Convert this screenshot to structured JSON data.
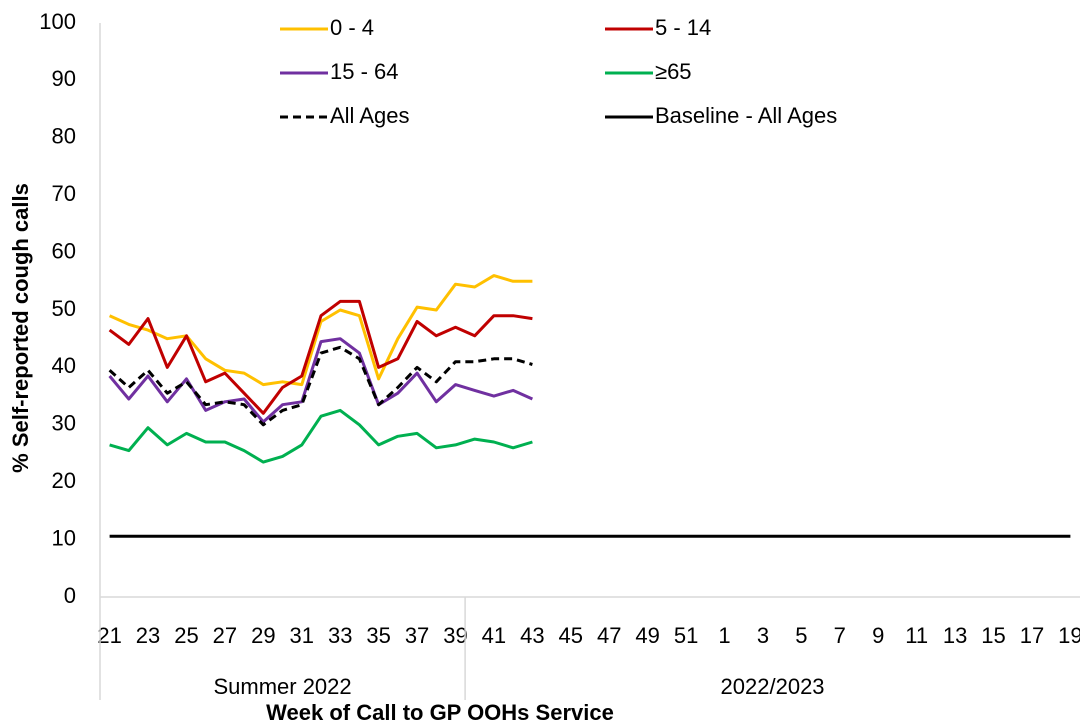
{
  "chart_data": {
    "type": "line",
    "ylabel": "% Self-reported cough calls",
    "xlabel": "Week of Call to GP OOHs Service",
    "categories": [
      "21",
      null,
      "23",
      null,
      "25",
      null,
      "27",
      null,
      "29",
      null,
      "31",
      null,
      "33",
      null,
      "35",
      null,
      "37",
      null,
      "39",
      null,
      "41",
      null,
      "43",
      null,
      "45",
      null,
      "47",
      null,
      "49",
      null,
      "51",
      null,
      "1",
      null,
      "3",
      null,
      "5",
      null,
      "7",
      null,
      "9",
      null,
      "11",
      null,
      "13",
      null,
      "15",
      null,
      "17",
      null,
      "19"
    ],
    "groups": [
      {
        "label": "Summer 2022",
        "span": 19
      },
      {
        "label": "2022/2023",
        "span": 32
      }
    ],
    "ylim": [
      0,
      100
    ],
    "yticks": [
      0,
      10,
      20,
      30,
      40,
      50,
      60,
      70,
      80,
      90,
      100
    ],
    "grid": false,
    "series": [
      {
        "name": "0 - 4",
        "color": "#ffc000",
        "style": "solid",
        "values": [
          49,
          47.5,
          46.5,
          45,
          45.5,
          41.5,
          39.5,
          39,
          37,
          37.5,
          37,
          48,
          50,
          49,
          38,
          45,
          50.5,
          50,
          54.5,
          54,
          56,
          55,
          55,
          null,
          null,
          null,
          null,
          null,
          null,
          null,
          null,
          null,
          null,
          null,
          null,
          null,
          null,
          null,
          null,
          null,
          null,
          null,
          null,
          null,
          null,
          null,
          null,
          null,
          null,
          null,
          null
        ]
      },
      {
        "name": "5 - 14",
        "color": "#c00000",
        "style": "solid",
        "values": [
          46.5,
          44,
          48.5,
          40,
          45.5,
          37.5,
          39,
          35.5,
          32,
          36.5,
          38.5,
          49,
          51.5,
          51.5,
          40,
          41.5,
          48,
          45.5,
          47,
          45.5,
          49,
          49,
          48.5,
          null,
          null,
          null,
          null,
          null,
          null,
          null,
          null,
          null,
          null,
          null,
          null,
          null,
          null,
          null,
          null,
          null,
          null,
          null,
          null,
          null,
          null,
          null,
          null,
          null,
          null,
          null,
          null
        ]
      },
      {
        "name": "15 - 64",
        "color": "#7030a0",
        "style": "solid",
        "values": [
          38.5,
          34.5,
          38.5,
          34,
          38,
          32.5,
          34,
          34.5,
          30.5,
          33.5,
          34,
          44.5,
          45,
          42.5,
          33.5,
          35.5,
          39,
          34,
          37,
          36,
          35,
          36,
          34.5,
          null,
          null,
          null,
          null,
          null,
          null,
          null,
          null,
          null,
          null,
          null,
          null,
          null,
          null,
          null,
          null,
          null,
          null,
          null,
          null,
          null,
          null,
          null,
          null,
          null,
          null,
          null,
          null
        ]
      },
      {
        "name": "≥65",
        "color": "#00b050",
        "style": "solid",
        "values": [
          26.5,
          25.5,
          29.5,
          26.5,
          28.5,
          27,
          27,
          25.5,
          23.5,
          24.5,
          26.5,
          31.5,
          32.5,
          30,
          26.5,
          28,
          28.5,
          26,
          26.5,
          27.5,
          27,
          26,
          27,
          null,
          null,
          null,
          null,
          null,
          null,
          null,
          null,
          null,
          null,
          null,
          null,
          null,
          null,
          null,
          null,
          null,
          null,
          null,
          null,
          null,
          null,
          null,
          null,
          null,
          null,
          null,
          null
        ]
      },
      {
        "name": "All Ages",
        "color": "#000000",
        "style": "dashed",
        "values": [
          39.5,
          36.5,
          39.5,
          35.5,
          37.5,
          33.5,
          34,
          33.5,
          30,
          32.5,
          33.5,
          42.5,
          43.5,
          41.5,
          33.5,
          36.5,
          40,
          37.5,
          41,
          41,
          41.5,
          41.5,
          40.5,
          null,
          null,
          null,
          null,
          null,
          null,
          null,
          null,
          null,
          null,
          null,
          null,
          null,
          null,
          null,
          null,
          null,
          null,
          null,
          null,
          null,
          null,
          null,
          null,
          null,
          null,
          null,
          null
        ]
      },
      {
        "name": "Baseline - All Ages",
        "color": "#000000",
        "style": "solid",
        "values": [
          10.6,
          10.6,
          10.6,
          10.6,
          10.6,
          10.6,
          10.6,
          10.6,
          10.6,
          10.6,
          10.6,
          10.6,
          10.6,
          10.6,
          10.6,
          10.6,
          10.6,
          10.6,
          10.6,
          10.6,
          10.6,
          10.6,
          10.6,
          10.6,
          10.6,
          10.6,
          10.6,
          10.6,
          10.6,
          10.6,
          10.6,
          10.6,
          10.6,
          10.6,
          10.6,
          10.6,
          10.6,
          10.6,
          10.6,
          10.6,
          10.6,
          10.6,
          10.6,
          10.6,
          10.6,
          10.6,
          10.6,
          10.6,
          10.6,
          10.6,
          10.6
        ]
      }
    ]
  }
}
